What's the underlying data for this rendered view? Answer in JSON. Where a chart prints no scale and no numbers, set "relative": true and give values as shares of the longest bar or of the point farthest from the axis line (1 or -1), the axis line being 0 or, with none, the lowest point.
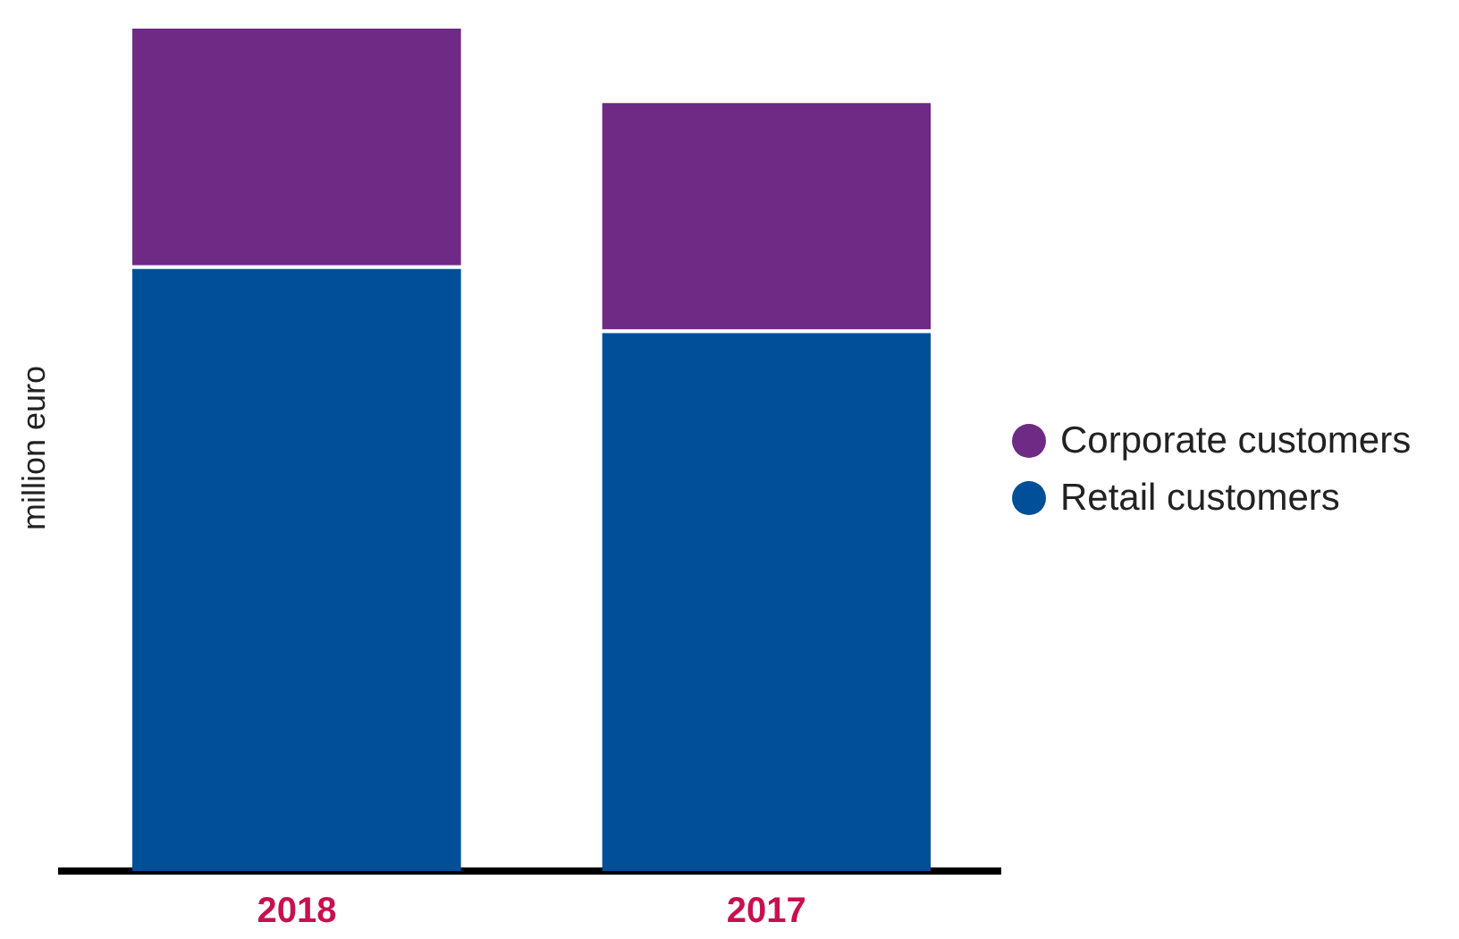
{
  "chart_data": {
    "type": "bar",
    "stacked": true,
    "relative": true,
    "ylabel": "million euro",
    "categories": [
      "2018",
      "2017"
    ],
    "series": [
      {
        "name": "Retail customers",
        "color": "#004f98",
        "values": [
          0.716,
          0.64
        ]
      },
      {
        "name": "Corporate customers",
        "color": "#6e2a84",
        "values": [
          0.284,
          0.272
        ]
      }
    ],
    "legend": "right",
    "grid": false
  }
}
